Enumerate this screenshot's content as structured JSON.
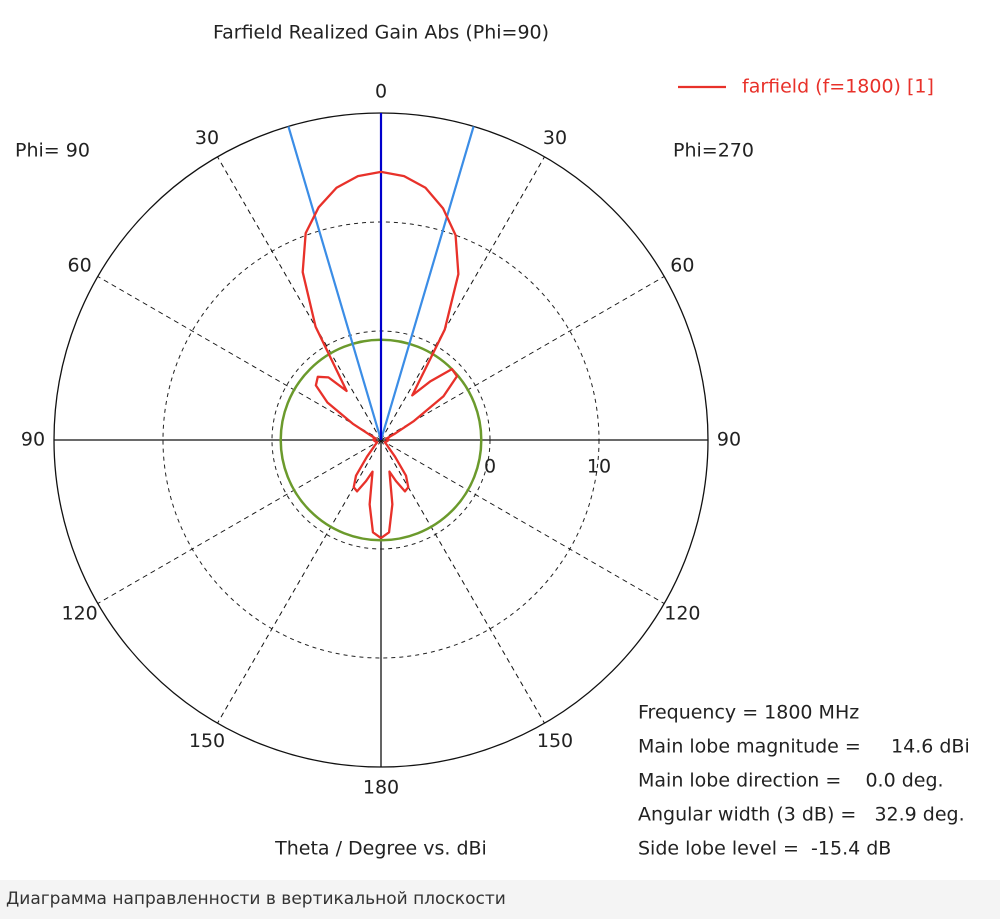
{
  "chart_data": {
    "type": "polar",
    "title": "Farfield Realized Gain Abs (Phi=90)",
    "x_label": "Theta / Degree vs. dBi",
    "left_label": "Phi= 90",
    "right_label": "Phi=270",
    "rlim": [
      -10,
      20
    ],
    "rticks": [
      0,
      10
    ],
    "theta_ticks": [
      {
        "value": -150,
        "label": "150"
      },
      {
        "value": -120,
        "label": "120"
      },
      {
        "value": -90,
        "label": "90"
      },
      {
        "value": -60,
        "label": "60"
      },
      {
        "value": -30,
        "label": "30"
      },
      0,
      30,
      60,
      90,
      120,
      150,
      180
    ],
    "grid": true,
    "legend_position": "upper right",
    "main_lobe_direction": 0,
    "main_lobe_color": "#0000cc",
    "beamwidth_edges": [
      -16.45,
      16.45
    ],
    "beamwidth_color": "#3b8de6",
    "sidelobe_circle": -0.8,
    "sidelobe_color": "#6b9a2c",
    "x": [
      -180,
      -175,
      -170,
      -165,
      -160,
      -155,
      -150,
      -145,
      -140,
      -135,
      -130,
      -125,
      -120,
      -115,
      -110,
      -105,
      -100,
      -95,
      -90,
      -85,
      -80,
      -75,
      -70,
      -65,
      -60,
      -55,
      -50,
      -45,
      -40,
      -35,
      -30,
      -25,
      -20,
      -15,
      -10,
      -5,
      0,
      5,
      10,
      15,
      20,
      25,
      30,
      35,
      40,
      45,
      50,
      55,
      60,
      65,
      70,
      75,
      80,
      85,
      90,
      95,
      100,
      105,
      110,
      115,
      120,
      125,
      130,
      135,
      140,
      145,
      150,
      155,
      160,
      165,
      170,
      175,
      180
    ],
    "series": [
      {
        "name": "farfield (f=1800) [1]",
        "color": "#e8312a",
        "values": [
          -1.0,
          -1.5,
          -4.0,
          -7.0,
          -6.0,
          -4.8,
          -5.0,
          -6.0,
          -8.0,
          -9.0,
          -9.3,
          -9.5,
          -9.6,
          -9.6,
          -9.5,
          -9.5,
          -9.4,
          -9.4,
          -9.3,
          -9.3,
          -9.4,
          -9.5,
          -9.3,
          -8.8,
          -7.0,
          -4.0,
          -2.2,
          -1.8,
          -2.5,
          -4.5,
          2.0,
          7.0,
          10.2,
          12.1,
          13.5,
          14.3,
          14.6,
          14.3,
          13.5,
          12.0,
          10.0,
          6.8,
          1.7,
          -5.0,
          -3.0,
          -0.8,
          -0.9,
          -3.0,
          -6.5,
          -8.5,
          -9.2,
          -9.5,
          -9.4,
          -9.3,
          -9.3,
          -9.4,
          -9.4,
          -9.5,
          -9.5,
          -9.6,
          -9.6,
          -9.5,
          -9.3,
          -9.0,
          -8.0,
          -6.0,
          -5.0,
          -4.8,
          -6.0,
          -7.0,
          -4.0,
          -1.5,
          -1.0
        ]
      }
    ],
    "info": [
      "Frequency = 1800 MHz",
      "Main lobe magnitude =     14.6 dBi",
      "Main lobe direction =    0.0 deg.",
      "Angular width (3 dB) =   32.9 deg.",
      "Side lobe level =  -15.4 dB"
    ]
  },
  "caption": "Диаграмма направленности в вертикальной плоскости"
}
